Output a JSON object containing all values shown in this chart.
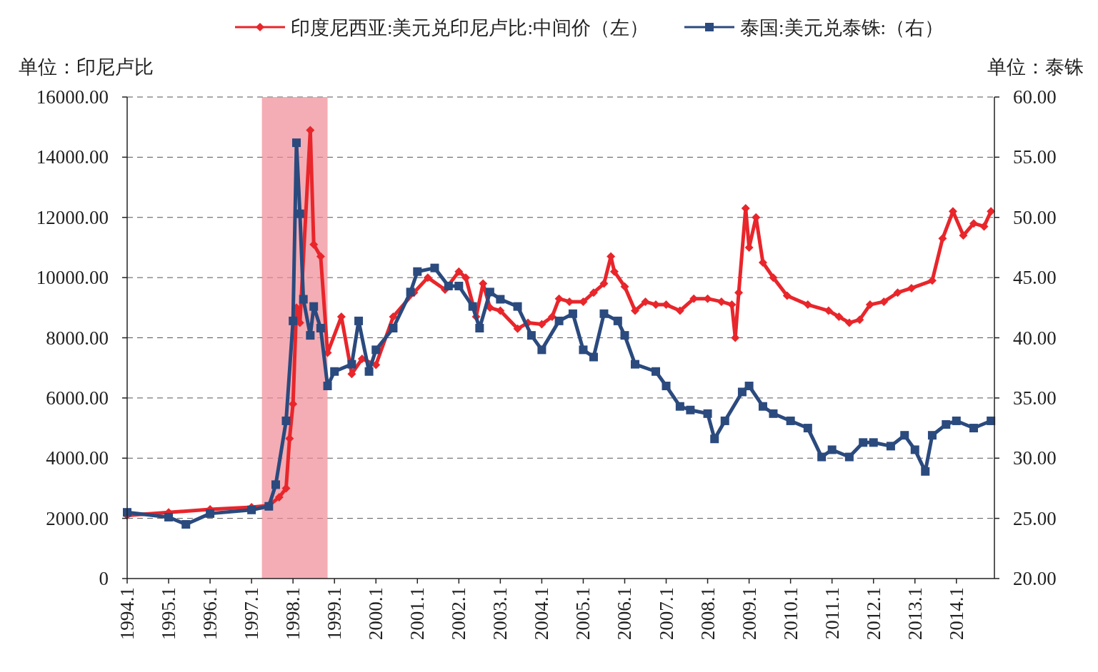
{
  "chart_data": {
    "type": "line",
    "ylabel": "单位：印尼卢比",
    "y2label": "单位：泰铢",
    "xlim": [
      "1994-01",
      "2014-12"
    ],
    "xticks": [
      {
        "value": "1994-01",
        "label": "1994.1"
      },
      {
        "value": "1995-01",
        "label": "1995.1"
      },
      {
        "value": "1996-01",
        "label": "1996.1"
      },
      {
        "value": "1997-01",
        "label": "1997.1"
      },
      {
        "value": "1998-01",
        "label": "1998.1"
      },
      {
        "value": "1999-01",
        "label": "1999.1"
      },
      {
        "value": "2000-01",
        "label": "2000.1"
      },
      {
        "value": "2001-01",
        "label": "2001.1"
      },
      {
        "value": "2002-01",
        "label": "2002.1"
      },
      {
        "value": "2003-01",
        "label": "2003.1"
      },
      {
        "value": "2004-01",
        "label": "2004.1"
      },
      {
        "value": "2005-01",
        "label": "2005.1"
      },
      {
        "value": "2006-01",
        "label": "2006.1"
      },
      {
        "value": "2007-01",
        "label": "2007.1"
      },
      {
        "value": "2008-01",
        "label": "2008.1"
      },
      {
        "value": "2009-01",
        "label": "2009.1"
      },
      {
        "value": "2010-01",
        "label": "2010.1"
      },
      {
        "value": "2011-01",
        "label": "2011.1"
      },
      {
        "value": "2012-01",
        "label": "2012.1"
      },
      {
        "value": "2013-01",
        "label": "2013.1"
      },
      {
        "value": "2014-01",
        "label": "2014.1"
      }
    ],
    "ylim": [
      0,
      16000
    ],
    "yticks": [
      0,
      {
        "value": 2000,
        "label": "2000.00"
      },
      {
        "value": 4000,
        "label": "4000.00"
      },
      {
        "value": 6000,
        "label": "6000.00"
      },
      {
        "value": 8000,
        "label": "8000.00"
      },
      {
        "value": 10000,
        "label": "10000.00"
      },
      {
        "value": 12000,
        "label": "12000.00"
      },
      {
        "value": 14000,
        "label": "14000.00"
      },
      {
        "value": 16000,
        "label": "16000.00"
      }
    ],
    "y2lim": [
      20,
      60
    ],
    "y2ticks": [
      {
        "value": 20,
        "label": "20.00"
      },
      {
        "value": 25,
        "label": "25.00"
      },
      {
        "value": 30,
        "label": "30.00"
      },
      {
        "value": 35,
        "label": "35.00"
      },
      {
        "value": 40,
        "label": "40.00"
      },
      {
        "value": 45,
        "label": "45.00"
      },
      {
        "value": 50,
        "label": "50.00"
      },
      {
        "value": 55,
        "label": "55.00"
      },
      {
        "value": 60,
        "label": "60.00"
      }
    ],
    "grid": "y",
    "legend": "top",
    "line_style": "solid",
    "bands": [
      {
        "axis": "x",
        "from": "1997-04",
        "to": "1998-11",
        "color": "#f08a94"
      }
    ],
    "series": [
      {
        "name": "印度尼西亚:美元兑印尼卢比:中间价（左）",
        "color": "#e8262b",
        "marker": "diamond",
        "axis": "y",
        "x": [
          "1994-01",
          "1995-01",
          "1996-01",
          "1997-01",
          "1997-06",
          "1997-09",
          "1997-11",
          "1997-12",
          "1998-01",
          "1998-02",
          "1998-03",
          "1998-06",
          "1998-07",
          "1998-09",
          "1998-11",
          "1999-03",
          "1999-06",
          "1999-09",
          "2000-01",
          "2000-06",
          "2000-12",
          "2001-04",
          "2001-09",
          "2002-01",
          "2002-03",
          "2002-06",
          "2002-08",
          "2002-10",
          "2003-01",
          "2003-06",
          "2003-09",
          "2004-01",
          "2004-04",
          "2004-06",
          "2004-09",
          "2005-01",
          "2005-04",
          "2005-07",
          "2005-09",
          "2005-10",
          "2006-01",
          "2006-04",
          "2006-07",
          "2006-10",
          "2007-01",
          "2007-05",
          "2007-09",
          "2008-01",
          "2008-05",
          "2008-08",
          "2008-09",
          "2008-10",
          "2008-12",
          "2009-01",
          "2009-03",
          "2009-05",
          "2009-08",
          "2009-12",
          "2010-06",
          "2010-12",
          "2011-03",
          "2011-06",
          "2011-09",
          "2011-12",
          "2012-04",
          "2012-08",
          "2012-12",
          "2013-06",
          "2013-09",
          "2013-12",
          "2014-03",
          "2014-06",
          "2014-09",
          "2014-11"
        ],
        "values": [
          2100,
          2200,
          2300,
          2370,
          2430,
          2700,
          3000,
          4650,
          5800,
          9000,
          8500,
          14900,
          11100,
          10700,
          7500,
          8700,
          6800,
          7300,
          7100,
          8700,
          9500,
          10000,
          9600,
          10200,
          10000,
          8700,
          9800,
          9000,
          8900,
          8300,
          8500,
          8450,
          8700,
          9300,
          9200,
          9200,
          9500,
          9800,
          10700,
          10200,
          9700,
          8900,
          9200,
          9100,
          9100,
          8900,
          9300,
          9300,
          9200,
          9100,
          8000,
          9500,
          12300,
          11000,
          12000,
          10500,
          10000,
          9400,
          9100,
          8900,
          8700,
          8500,
          8600,
          9100,
          9200,
          9500,
          9650,
          9900,
          11300,
          12200,
          11400,
          11800,
          11700,
          12200
        ]
      },
      {
        "name": "泰国:美元兑泰铢:（右）",
        "color": "#2b4a7e",
        "marker": "square",
        "axis": "y2",
        "x": [
          "1994-01",
          "1995-01",
          "1995-06",
          "1996-01",
          "1997-01",
          "1997-06",
          "1997-08",
          "1997-11",
          "1998-01",
          "1998-02",
          "1998-03",
          "1998-04",
          "1998-06",
          "1998-07",
          "1998-09",
          "1998-11",
          "1999-01",
          "1999-06",
          "1999-08",
          "1999-11",
          "2000-01",
          "2000-06",
          "2000-11",
          "2001-01",
          "2001-06",
          "2001-10",
          "2002-01",
          "2002-05",
          "2002-07",
          "2002-10",
          "2003-01",
          "2003-06",
          "2003-10",
          "2004-01",
          "2004-06",
          "2004-10",
          "2005-01",
          "2005-04",
          "2005-07",
          "2005-11",
          "2006-01",
          "2006-04",
          "2006-10",
          "2007-01",
          "2007-05",
          "2007-08",
          "2008-01",
          "2008-03",
          "2008-06",
          "2008-11",
          "2009-01",
          "2009-05",
          "2009-08",
          "2010-01",
          "2010-06",
          "2010-10",
          "2011-01",
          "2011-06",
          "2011-10",
          "2012-01",
          "2012-06",
          "2012-10",
          "2013-01",
          "2013-04",
          "2013-06",
          "2013-10",
          "2014-01",
          "2014-06",
          "2014-11"
        ],
        "values": [
          25.5,
          25.1,
          24.5,
          25.4,
          25.7,
          26,
          27.8,
          33.1,
          41.4,
          56.2,
          50.3,
          43.2,
          40.2,
          42.6,
          40.8,
          36,
          37.2,
          37.8,
          41.4,
          37.2,
          39,
          40.8,
          43.8,
          45.5,
          45.8,
          44.3,
          44.3,
          42.6,
          40.8,
          43.8,
          43.2,
          42.6,
          40.2,
          39,
          41.4,
          42,
          39,
          38.4,
          42,
          41.4,
          40.2,
          37.8,
          37.2,
          36,
          34.3,
          34,
          33.7,
          31.6,
          33.1,
          35.5,
          36,
          34.3,
          33.7,
          33.1,
          32.5,
          30.1,
          30.7,
          30.1,
          31.3,
          31.3,
          31,
          31.9,
          30.7,
          28.9,
          31.9,
          32.8,
          33.1,
          32.5,
          33.1
        ]
      }
    ]
  }
}
